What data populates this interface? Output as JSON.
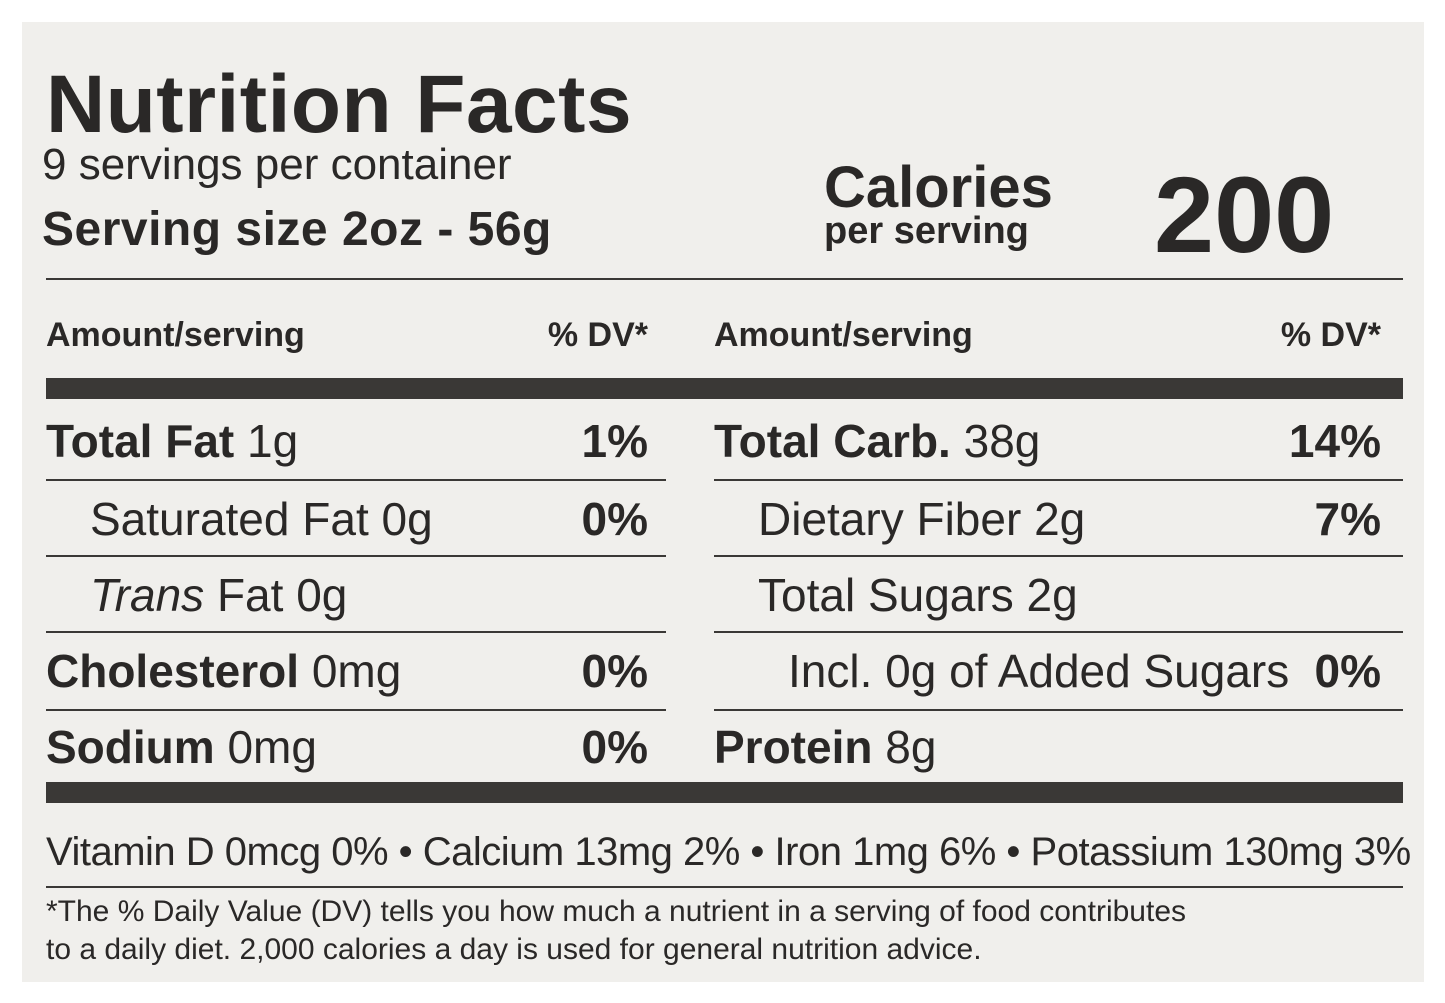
{
  "title": "Nutrition Facts",
  "servings_per_container": "9 servings per container",
  "serving_size": "Serving size 2oz - 56g",
  "calories": {
    "label": "Calories",
    "sublabel": "per serving",
    "value": "200"
  },
  "columns": {
    "amount_header": "Amount/serving",
    "dv_header": "% DV*"
  },
  "left_rows": [
    {
      "name": "Total Fat",
      "amount": " 1g",
      "dv": "1%"
    },
    {
      "name": "Saturated Fat",
      "amount": " 0g",
      "dv": "0%"
    },
    {
      "name_italic": "Trans",
      "name": " Fat",
      "amount": " 0g",
      "dv": ""
    },
    {
      "name": "Cholesterol",
      "amount": " 0mg",
      "dv": "0%"
    },
    {
      "name": "Sodium",
      "amount": " 0mg",
      "dv": "0%"
    }
  ],
  "right_rows": [
    {
      "name": "Total Carb.",
      "amount": " 38g",
      "dv": "14%"
    },
    {
      "name": "Dietary Fiber",
      "amount": " 2g",
      "dv": "7%"
    },
    {
      "name": "Total Sugars",
      "amount": " 2g",
      "dv": ""
    },
    {
      "name": "Incl. 0g of Added Sugars",
      "amount": "",
      "dv": "0%"
    },
    {
      "name": "Protein",
      "amount": " 8g",
      "dv": ""
    }
  ],
  "vitamins": "Vitamin D 0mcg 0% • Calcium 13mg 2% • Iron 1mg 6% • Potassium 130mg 3%",
  "footnote": {
    "line1": "*The % Daily Value (DV) tells you how much a nutrient in a serving of food contributes",
    "line2": "to a daily diet. 2,000 calories a day is used for general nutrition advice."
  }
}
